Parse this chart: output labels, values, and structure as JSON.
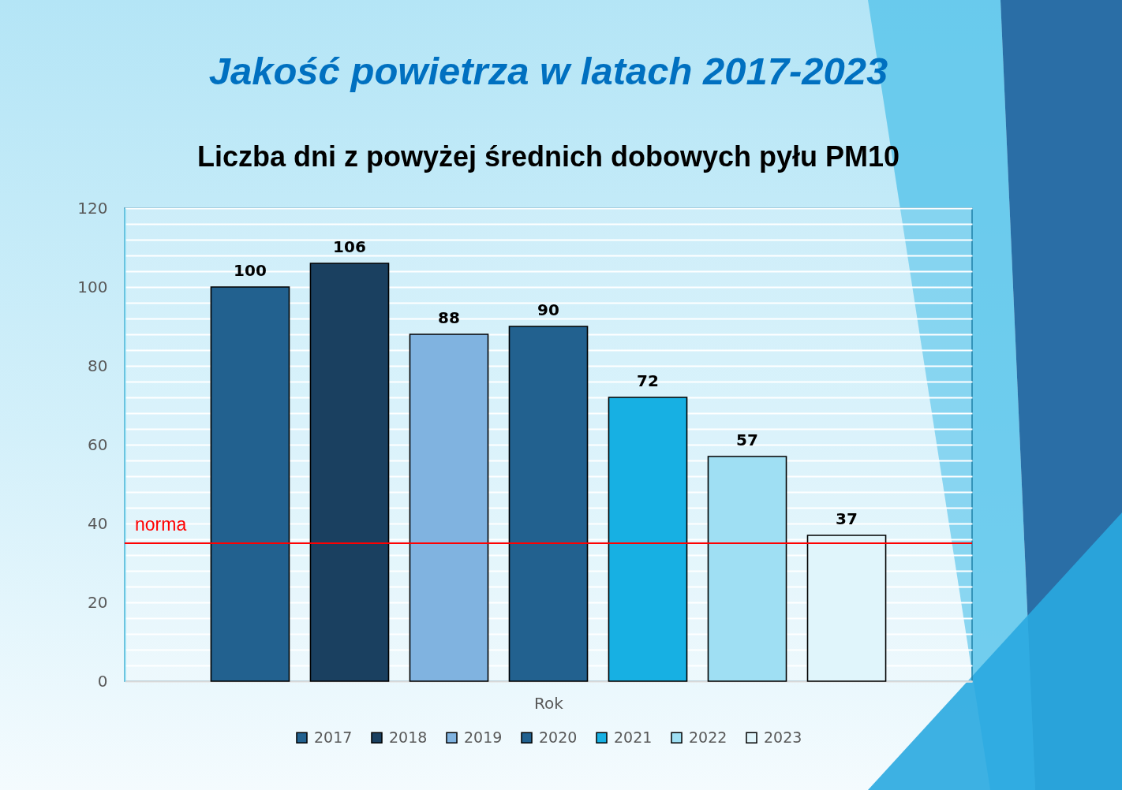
{
  "chart_data": {
    "type": "bar",
    "title": "Jakość powietrza w latach 2017-2023",
    "subtitle": "Liczba dni z powyżej średnich dobowych pyłu PM10",
    "xlabel": "Rok",
    "categories": [
      null
    ],
    "series": [
      {
        "name": "2017",
        "color": "#22618f",
        "values": [
          100
        ]
      },
      {
        "name": "2018",
        "color": "#1a4060",
        "values": [
          106
        ]
      },
      {
        "name": "2019",
        "color": "#80b3e0",
        "values": [
          88
        ]
      },
      {
        "name": "2020",
        "color": "#22618f",
        "values": [
          90
        ]
      },
      {
        "name": "2021",
        "color": "#17b0e3",
        "values": [
          72
        ]
      },
      {
        "name": "2022",
        "color": "#9fdff3",
        "values": [
          57
        ]
      },
      {
        "name": "2023",
        "color": "#e0f5fb",
        "values": [
          37
        ]
      }
    ],
    "ylim": [
      0,
      120
    ],
    "yticks": [
      0,
      {
        "value": 4,
        "label": null
      },
      {
        "value": 8,
        "label": null
      },
      {
        "value": 12,
        "label": null
      },
      {
        "value": 16,
        "label": null
      },
      20,
      {
        "value": 24,
        "label": null
      },
      {
        "value": 28,
        "label": null
      },
      {
        "value": 32,
        "label": null
      },
      {
        "value": 36,
        "label": null
      },
      40,
      {
        "value": 44,
        "label": null
      },
      {
        "value": 48,
        "label": null
      },
      {
        "value": 52,
        "label": null
      },
      {
        "value": 56,
        "label": null
      },
      60,
      {
        "value": 64,
        "label": null
      },
      {
        "value": 68,
        "label": null
      },
      {
        "value": 72,
        "label": null
      },
      {
        "value": 76,
        "label": null
      },
      80,
      {
        "value": 84,
        "label": null
      },
      {
        "value": 88,
        "label": null
      },
      {
        "value": 92,
        "label": null
      },
      {
        "value": 96,
        "label": null
      },
      100,
      {
        "value": 104,
        "label": null
      },
      {
        "value": 108,
        "label": null
      },
      {
        "value": 112,
        "label": null
      },
      {
        "value": 116,
        "label": null
      },
      120
    ],
    "grid": "y",
    "legend": "bottom",
    "data_labels": true,
    "ref_lines": [
      {
        "axis": "y",
        "value": 35,
        "label": "norma",
        "color": "#ff0000"
      }
    ]
  }
}
